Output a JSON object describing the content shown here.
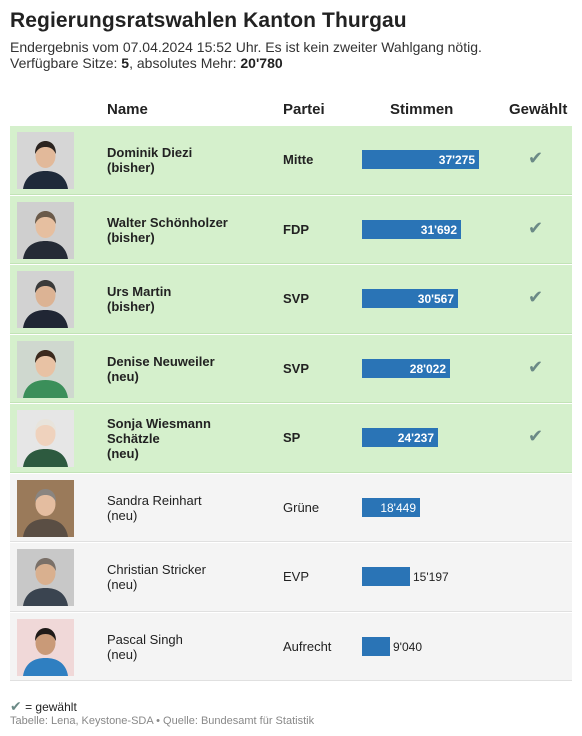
{
  "title": "Regierungsratswahlen Kanton Thurgau",
  "subtitle_line1": "Endergebnis vom 07.04.2024 15:52 Uhr. Es ist kein zweiter Wahlgang nötig.",
  "subtitle_line2": {
    "seats_label": "Verfügbare Sitze: ",
    "seats_value": "5",
    "majority_label": ", absolutes Mehr: ",
    "majority_value": "20'780"
  },
  "columns": {
    "name": "Name",
    "party": "Partei",
    "votes": "Stimmen",
    "elected": "Gewählt"
  },
  "colors": {
    "bar": "#2a74b6",
    "elected_row": "#d5f0cc",
    "other_row": "#f4f4f4",
    "check": "#6b8a86"
  },
  "check_symbol": "✔",
  "chart_data": {
    "type": "table",
    "max_votes": 37275,
    "rows": [
      {
        "name_lines": [
          "Dominik Diezi",
          "(bisher)"
        ],
        "party": "Mitte",
        "votes": 37275,
        "votes_label": "37'275",
        "elected": true
      },
      {
        "name_lines": [
          "Walter Schönholzer",
          "(bisher)"
        ],
        "party": "FDP",
        "votes": 31692,
        "votes_label": "31'692",
        "elected": true
      },
      {
        "name_lines": [
          "Urs Martin",
          "(bisher)"
        ],
        "party": "SVP",
        "votes": 30567,
        "votes_label": "30'567",
        "elected": true
      },
      {
        "name_lines": [
          "Denise Neuweiler",
          "(neu)"
        ],
        "party": "SVP",
        "votes": 28022,
        "votes_label": "28'022",
        "elected": true
      },
      {
        "name_lines": [
          "Sonja Wiesmann",
          "Schätzle",
          "(neu)"
        ],
        "party": "SP",
        "votes": 24237,
        "votes_label": "24'237",
        "elected": true
      },
      {
        "name_lines": [
          "Sandra Reinhart",
          "(neu)"
        ],
        "party": "Grüne",
        "votes": 18449,
        "votes_label": "18'449",
        "elected": false
      },
      {
        "name_lines": [
          "Christian Stricker",
          "(neu)"
        ],
        "party": "EVP",
        "votes": 15197,
        "votes_label": "15'197",
        "elected": false
      },
      {
        "name_lines": [
          "Pascal Singh",
          "(neu)"
        ],
        "party": "Aufrecht",
        "votes": 9040,
        "votes_label": "9'040",
        "elected": false
      }
    ]
  },
  "legend_text": " = gewählt",
  "source": "Tabelle: Lena, Keystone-SDA • Quelle: Bundesamt für Statistik"
}
